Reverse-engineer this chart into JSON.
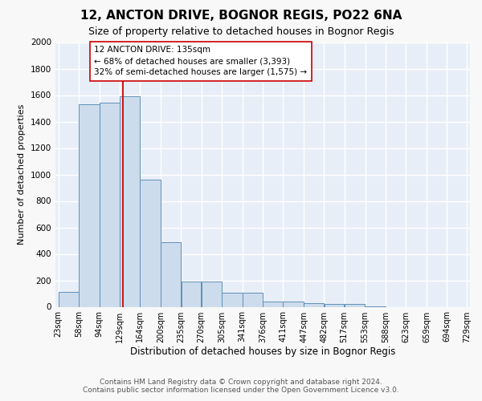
{
  "title1": "12, ANCTON DRIVE, BOGNOR REGIS, PO22 6NA",
  "title2": "Size of property relative to detached houses in Bognor Regis",
  "xlabel": "Distribution of detached houses by size in Bognor Regis",
  "ylabel": "Number of detached properties",
  "footer1": "Contains HM Land Registry data © Crown copyright and database right 2024.",
  "footer2": "Contains public sector information licensed under the Open Government Licence v3.0.",
  "bin_edges": [
    23,
    58,
    94,
    129,
    164,
    200,
    235,
    270,
    305,
    341,
    376,
    411,
    447,
    482,
    517,
    553,
    588,
    623,
    659,
    694,
    729
  ],
  "bar_heights": [
    110,
    1530,
    1540,
    1590,
    960,
    490,
    190,
    190,
    105,
    105,
    40,
    40,
    25,
    20,
    20,
    5,
    0,
    0,
    0,
    0
  ],
  "property_size": 135,
  "bar_color": "#ccdcec",
  "bar_edge_color": "#6090b8",
  "vline_color": "#cc0000",
  "annotation_text": "12 ANCTON DRIVE: 135sqm\n← 68% of detached houses are smaller (3,393)\n32% of semi-detached houses are larger (1,575) →",
  "annotation_box_color": "#ffffff",
  "annotation_edge_color": "#cc0000",
  "ylim": [
    0,
    2000
  ],
  "background_color": "#e8eef8",
  "grid_color": "#ffffff",
  "title1_fontsize": 11,
  "title2_fontsize": 9,
  "ylabel_fontsize": 8,
  "xlabel_fontsize": 8.5,
  "tick_fontsize": 7,
  "footer_fontsize": 6.5,
  "annotation_fontsize": 7.5
}
